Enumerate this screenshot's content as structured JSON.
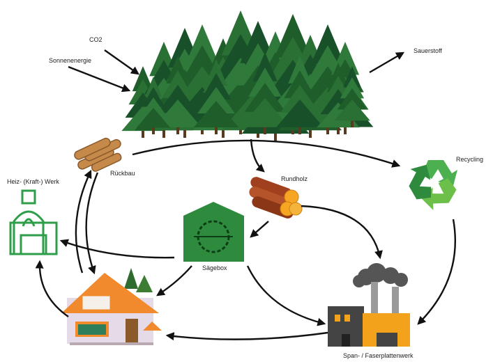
{
  "nodes": [
    {
      "label": "CO2"
    },
    {
      "label": "Sonnenenergie"
    },
    {
      "label": "Sauerstoff"
    },
    {
      "label": "Rückbau"
    },
    {
      "label": "Rundholz"
    },
    {
      "label": "Recycling"
    },
    {
      "label": "Heiz- (Kraft-) Werk"
    },
    {
      "label": "Sägebox"
    },
    {
      "label": "Span- / Faserplattenwerk"
    }
  ]
}
